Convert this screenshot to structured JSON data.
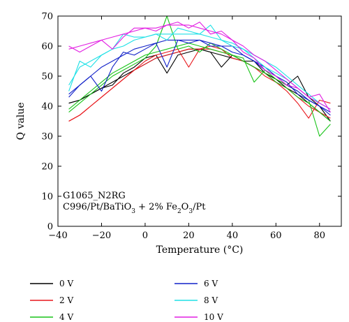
{
  "chart_data": {
    "type": "line",
    "xlabel": "Temperature (°C)",
    "ylabel": "Q value",
    "xlim": [
      -40,
      90
    ],
    "ylim": [
      0,
      70
    ],
    "xticks": [
      -40,
      -20,
      0,
      20,
      40,
      60,
      80
    ],
    "xtick_labels": [
      "−40",
      "−20",
      "0",
      "20",
      "40",
      "60",
      "80"
    ],
    "yticks": [
      0,
      10,
      20,
      30,
      40,
      50,
      60,
      70
    ],
    "grid": false,
    "legend_placement": "bottom",
    "annotations": {
      "line1": "G1065_N2RG",
      "line2_prefix": "C996/Pt/BaTiO",
      "line2_sub1": "3",
      "line2_mid": " + 2% Fe",
      "line2_sub2": "2",
      "line2_o": "O",
      "line2_sub3": "3",
      "line2_suffix": "/Pt"
    },
    "x": [
      -35,
      -30,
      -25,
      -20,
      -15,
      -10,
      -5,
      0,
      5,
      10,
      15,
      20,
      25,
      30,
      35,
      40,
      45,
      50,
      55,
      60,
      65,
      70,
      75,
      80,
      85
    ],
    "series": [
      {
        "name": "0 V",
        "color": "#000000",
        "values": [
          41,
          42,
          44,
          46,
          47,
          51,
          53,
          56,
          57,
          51,
          57,
          58,
          59,
          58,
          53,
          57,
          55,
          55,
          51,
          49,
          47,
          50,
          43,
          40,
          35
        ]
      },
      {
        "name": "0 V",
        "color": "#000000",
        "values": [
          41,
          42,
          44,
          46,
          48,
          50,
          52,
          54,
          56,
          57,
          58,
          59,
          59,
          58,
          57,
          56,
          55,
          53,
          51,
          49,
          46,
          44,
          41,
          38,
          35
        ]
      },
      {
        "name": "2 V",
        "color": "#e8161b",
        "values": [
          35,
          37,
          40,
          43,
          46,
          49,
          52,
          55,
          57,
          58,
          59,
          53,
          59,
          60,
          59,
          56,
          55,
          53,
          50,
          48,
          45,
          41,
          36,
          42,
          41
        ]
      },
      {
        "name": "2 V",
        "color": "#e8161b",
        "values": [
          35,
          37,
          40,
          43,
          46,
          49,
          52,
          54,
          56,
          57,
          58,
          59,
          59,
          59,
          58,
          57,
          55,
          53,
          51,
          48,
          46,
          43,
          40,
          38,
          36
        ]
      },
      {
        "name": "4 V",
        "color": "#18c418",
        "values": [
          38,
          41,
          44,
          47,
          50,
          52,
          54,
          56,
          60,
          70,
          59,
          60,
          58,
          61,
          59,
          57,
          56,
          48,
          52,
          49,
          47,
          45,
          42,
          30,
          34
        ]
      },
      {
        "name": "4 V",
        "color": "#18c418",
        "values": [
          39,
          42,
          45,
          48,
          51,
          53,
          55,
          57,
          58,
          59,
          60,
          61,
          60,
          59,
          58,
          57,
          55,
          53,
          51,
          48,
          46,
          43,
          41,
          38,
          35
        ]
      },
      {
        "name": "6 V",
        "color": "#1020c8",
        "values": [
          44,
          47,
          50,
          45,
          53,
          58,
          57,
          59,
          61,
          53,
          62,
          61,
          62,
          60,
          60,
          60,
          57,
          55,
          53,
          50,
          48,
          44,
          42,
          40,
          37
        ]
      },
      {
        "name": "6 V",
        "color": "#1020c8",
        "values": [
          43,
          47,
          50,
          53,
          55,
          57,
          59,
          60,
          61,
          62,
          62,
          62,
          62,
          61,
          60,
          58,
          57,
          55,
          52,
          50,
          47,
          45,
          42,
          40,
          38
        ]
      },
      {
        "name": "8 V",
        "color": "#1ee0e6",
        "values": [
          45,
          55,
          53,
          57,
          59,
          64,
          63,
          63,
          64,
          62,
          66,
          65,
          64,
          67,
          62,
          60,
          59,
          56,
          53,
          51,
          49,
          46,
          43,
          41,
          39
        ]
      },
      {
        "name": "8 V",
        "color": "#1ee0e6",
        "values": [
          47,
          53,
          55,
          57,
          59,
          60,
          62,
          63,
          64,
          64,
          64,
          64,
          64,
          63,
          62,
          61,
          59,
          57,
          55,
          53,
          50,
          47,
          44,
          41,
          39
        ]
      },
      {
        "name": "10 V",
        "color": "#e21ee2",
        "values": [
          60,
          58,
          60,
          62,
          59,
          63,
          66,
          66,
          65,
          67,
          68,
          66,
          68,
          64,
          65,
          62,
          58,
          56,
          52,
          50,
          47,
          46,
          43,
          44,
          38
        ]
      },
      {
        "name": "10 V",
        "color": "#e21ee2",
        "values": [
          59,
          60,
          61,
          62,
          63,
          64,
          65,
          66,
          66,
          67,
          67,
          67,
          66,
          65,
          64,
          62,
          60,
          57,
          55,
          52,
          49,
          46,
          43,
          41,
          39
        ]
      }
    ],
    "legend": [
      {
        "name": "0 V",
        "color": "#000000"
      },
      {
        "name": "2 V",
        "color": "#e8161b"
      },
      {
        "name": "4 V",
        "color": "#18c418"
      },
      {
        "name": "6 V",
        "color": "#1020c8"
      },
      {
        "name": "8 V",
        "color": "#1ee0e6"
      },
      {
        "name": "10 V",
        "color": "#e21ee2"
      }
    ]
  }
}
